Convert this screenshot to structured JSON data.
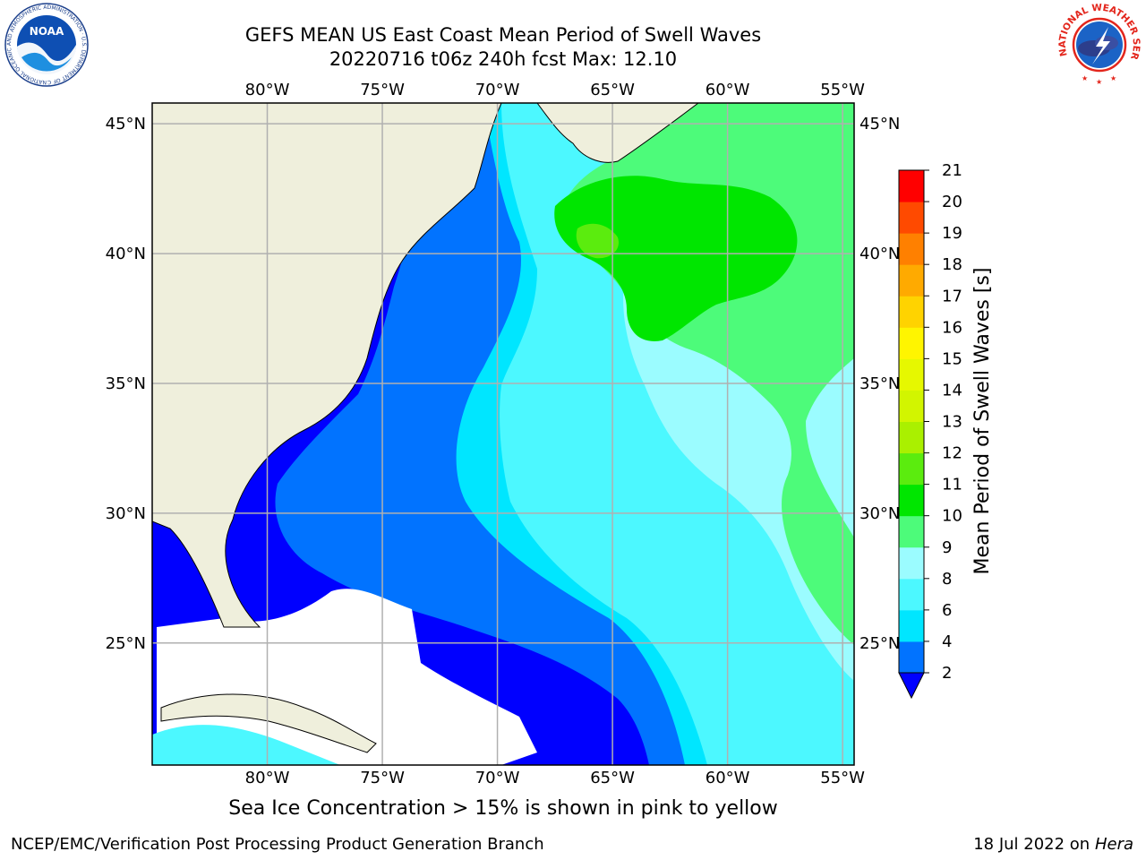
{
  "header": {
    "title_line1": "GEFS MEAN US East Coast Mean Period of Swell Waves",
    "title_line2": "20220716 t06z 240h fcst   Max: 12.10",
    "noaa_logo_label": "NOAA",
    "noaa_logo_ring": "NATIONAL OCEANIC AND ATMOSPHERIC ADMINISTRATION · U.S. DEPARTMENT OF COMMERCE ·",
    "nws_logo_ring": "NATIONAL WEATHER SERVICE"
  },
  "map": {
    "lon_labels": [
      "80°W",
      "75°W",
      "70°W",
      "65°W",
      "60°W",
      "55°W"
    ],
    "lon_values": [
      -80,
      -75,
      -70,
      -65,
      -60,
      -55
    ],
    "lat_labels": [
      "45°N",
      "40°N",
      "35°N",
      "30°N",
      "25°N"
    ],
    "lat_values": [
      45,
      40,
      35,
      30,
      25
    ],
    "lon_range": [
      -85,
      -54.5
    ],
    "lat_range": [
      20.3,
      45.8
    ],
    "land_color": "#efefdc",
    "nodata_color": "#ffffff",
    "gridlines": true
  },
  "colorbar": {
    "label": "Mean Period of Swell Waves [s]",
    "tick_labels": [
      "2",
      "4",
      "6",
      "8",
      "9",
      "10",
      "11",
      "12",
      "13",
      "14",
      "15",
      "16",
      "17",
      "18",
      "19",
      "20",
      "21"
    ],
    "colors": [
      "#0173ff",
      "#00e6ff",
      "#4cf8ff",
      "#9bfcff",
      "#4dfb7a",
      "#00e600",
      "#5bec0e",
      "#aaf000",
      "#d2f500",
      "#e6f800",
      "#fff500",
      "#ffd300",
      "#ffaa00",
      "#ff8000",
      "#ff4a00",
      "#ff0000"
    ],
    "under_color": "#0000ff"
  },
  "notes": {
    "sea_ice": "Sea Ice Concentration > 15% is shown in pink to yellow",
    "credit": "NCEP/EMC/Verification Post Processing Product Generation Branch",
    "date": "18 Jul 2022 on ",
    "host": "Hera"
  }
}
